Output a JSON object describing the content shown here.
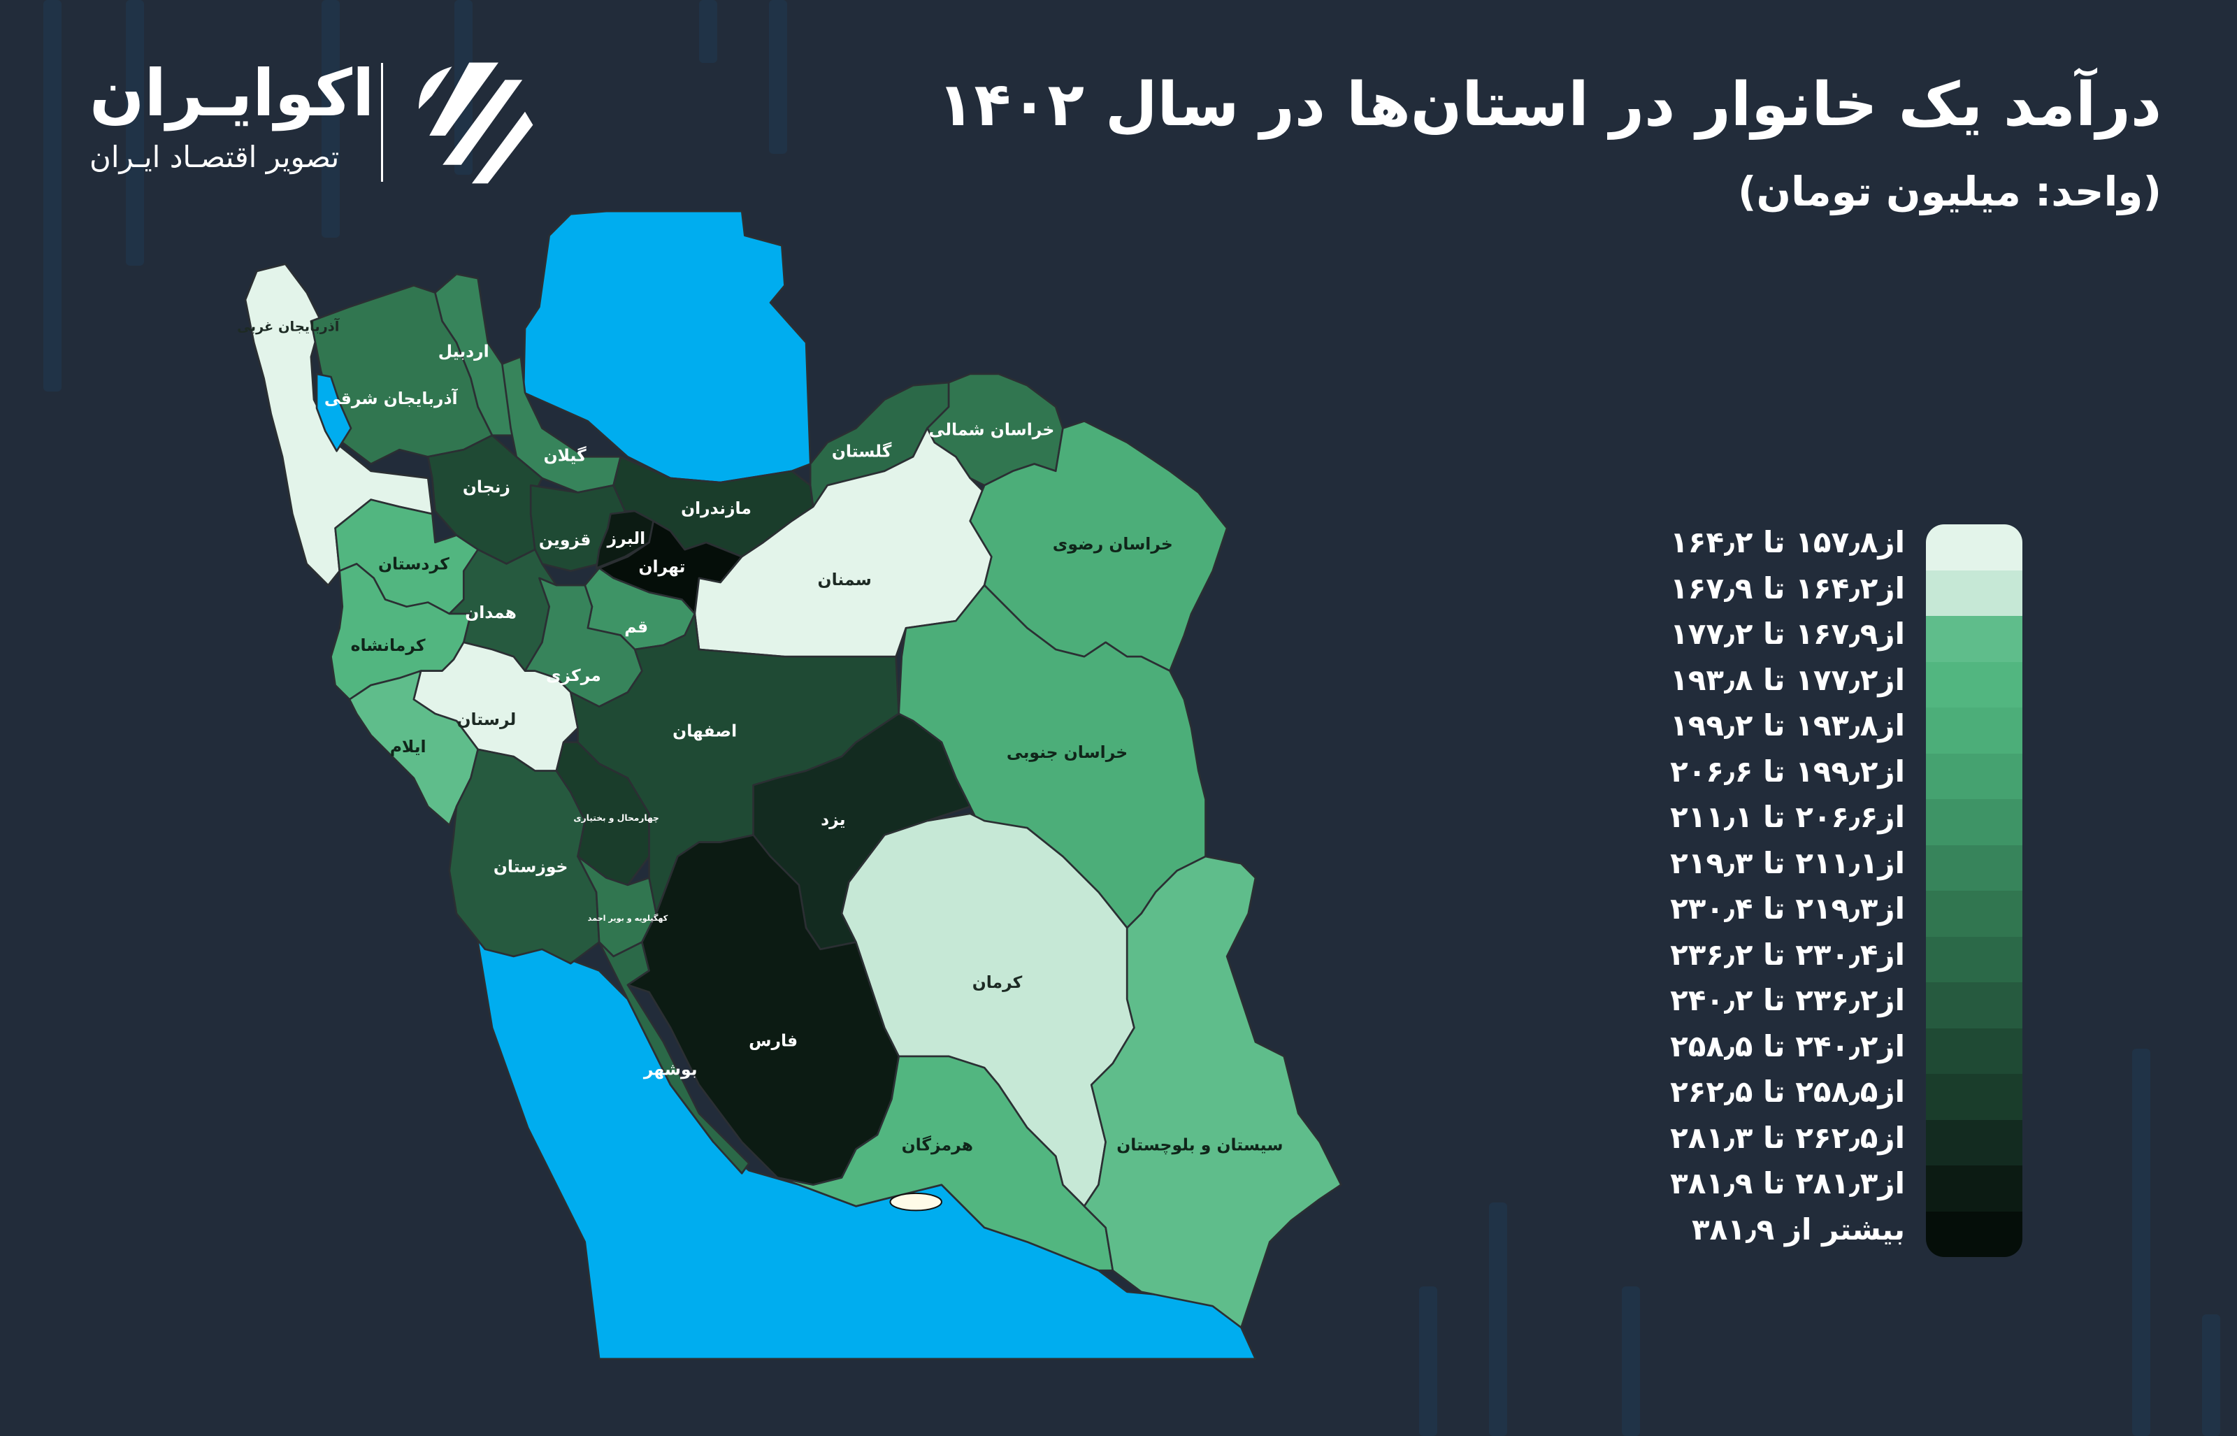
{
  "title": "درآمد یک خانوار در استان‌ها در سال ۱۴۰۲",
  "subtitle": "(واحد: میلیون تومان)",
  "logo": {
    "name": "اکوایـران",
    "tagline": "تصویر اقتصـاد ایـران",
    "icon": "ecoiran-stripes-logo"
  },
  "colors": {
    "background": "#222c3a",
    "water": "#00adef",
    "border": "#2b2f33"
  },
  "legend": {
    "items": [
      {
        "label": "از۱۵۷٫۸ تا ۱۶۴٫۲",
        "color": "#e3f4ea"
      },
      {
        "label": "از۱۶۴٫۲ تا ۱۶۷٫۹",
        "color": "#c6e8d6"
      },
      {
        "label": "از۱۶۷٫۹ تا ۱۷۷٫۲",
        "color": "#5fbd8b"
      },
      {
        "label": "از۱۷۷٫۲ تا ۱۹۳٫۸",
        "color": "#52b680"
      },
      {
        "label": "از۱۹۳٫۸ تا ۱۹۹٫۲",
        "color": "#4cae79"
      },
      {
        "label": "از۱۹۹٫۲ تا ۲۰۶٫۶",
        "color": "#45a270"
      },
      {
        "label": "از۲۰۶٫۶ تا ۲۱۱٫۱",
        "color": "#3e9466"
      },
      {
        "label": "از۲۱۱٫۱ تا ۲۱۹٫۳",
        "color": "#37845b"
      },
      {
        "label": "از۲۱۹٫۳ تا ۲۳۰٫۴",
        "color": "#317650"
      },
      {
        "label": "از۲۳۰٫۴ تا ۲۳۶٫۲",
        "color": "#2b6948"
      },
      {
        "label": "از۲۳۶٫۲ تا ۲۴۰٫۲",
        "color": "#265a3f"
      },
      {
        "label": "از۲۴۰٫۲ تا ۲۵۸٫۵",
        "color": "#1f4a34"
      },
      {
        "label": "از۲۵۸٫۵ تا ۲۶۲٫۵",
        "color": "#1a3d2b"
      },
      {
        "label": "از۲۶۲٫۵ تا ۲۸۱٫۳",
        "color": "#132b20"
      },
      {
        "label": "از۲۸۱٫۳ تا ۳۸۱٫۹",
        "color": "#0c1b13"
      },
      {
        "label": "بیشتر از ۳۸۱٫۹",
        "color": "#050e09"
      }
    ]
  },
  "provinces": [
    {
      "name": "آذربایجان غربی",
      "bin": 0
    },
    {
      "name": "آذربایجان شرقی",
      "bin": 8
    },
    {
      "name": "اردبیل",
      "bin": 7
    },
    {
      "name": "گیلان",
      "bin": 7
    },
    {
      "name": "زنجان",
      "bin": 11
    },
    {
      "name": "قزوین",
      "bin": 11
    },
    {
      "name": "البرز",
      "bin": 14
    },
    {
      "name": "تهران",
      "bin": 15
    },
    {
      "name": "مازندران",
      "bin": 12
    },
    {
      "name": "گلستان",
      "bin": 9
    },
    {
      "name": "خراسان شمالی",
      "bin": 8
    },
    {
      "name": "سمنان",
      "bin": 0
    },
    {
      "name": "خراسان رضوی",
      "bin": 4
    },
    {
      "name": "خراسان جنوبی",
      "bin": 4
    },
    {
      "name": "کردستان",
      "bin": 3
    },
    {
      "name": "همدان",
      "bin": 10
    },
    {
      "name": "کرمانشاه",
      "bin": 3
    },
    {
      "name": "قم",
      "bin": 6
    },
    {
      "name": "مرکزی",
      "bin": 7
    },
    {
      "name": "لرستان",
      "bin": 0
    },
    {
      "name": "ایلام",
      "bin": 2
    },
    {
      "name": "خوزستان",
      "bin": 10
    },
    {
      "name": "چهارمحال و بختیاری",
      "bin": 12
    },
    {
      "name": "کهگیلویه و بویر احمد",
      "bin": 8
    },
    {
      "name": "بوشهر",
      "bin": 9
    },
    {
      "name": "اصفهان",
      "bin": 11
    },
    {
      "name": "یزد",
      "bin": 13
    },
    {
      "name": "فارس",
      "bin": 14
    },
    {
      "name": "کرمان",
      "bin": 1
    },
    {
      "name": "هرمزگان",
      "bin": 3
    },
    {
      "name": "سیستان و بلوچستان",
      "bin": 2
    }
  ]
}
